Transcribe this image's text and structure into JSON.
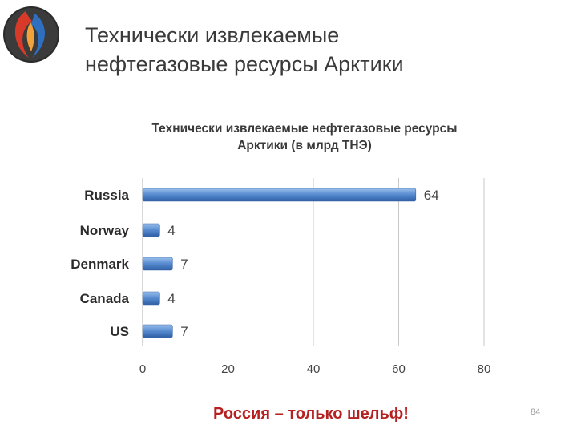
{
  "slide": {
    "title": "Технически извлекаемые\nнефтегазовые ресурсы Арктики",
    "footer_note": "Россия – только шельф!",
    "page_number": "84"
  },
  "colors": {
    "bar": "#4a7cc0",
    "bar_light": "#7fa7dc",
    "grid": "#c8c8c8",
    "footer": "#b52020"
  },
  "chart_data": {
    "type": "bar",
    "orientation": "horizontal",
    "title": "Технически извлекаемые нефтегазовые ресурсы\nАрктики (в млрд ТНЭ)",
    "categories": [
      "Russia",
      "Norway",
      "Denmark",
      "Canada",
      "US"
    ],
    "values": [
      64,
      4,
      7,
      4,
      7
    ],
    "xlim": [
      0,
      80
    ],
    "x_ticks": [
      0,
      20,
      40,
      60,
      80
    ],
    "grid": "vertical",
    "data_labels": true
  }
}
